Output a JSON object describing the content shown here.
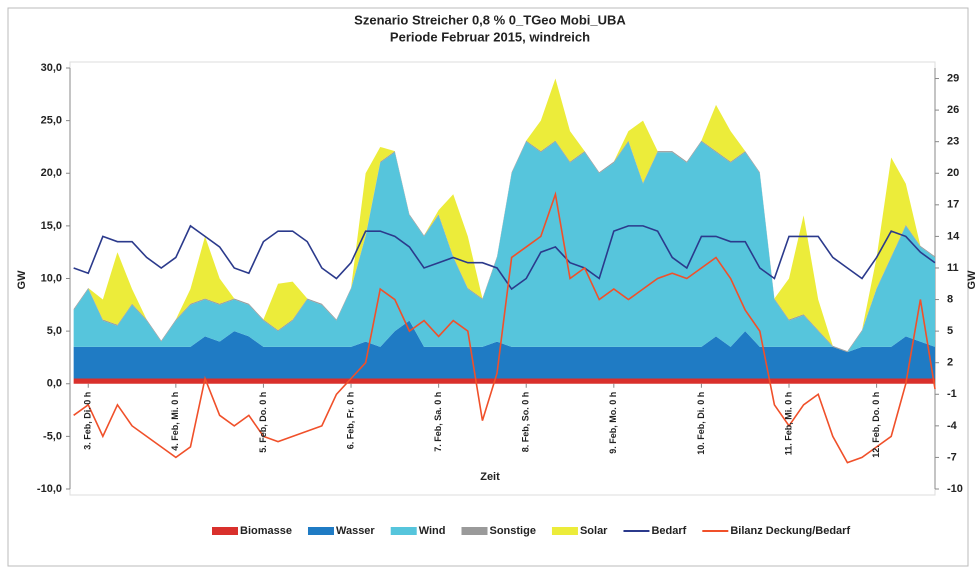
{
  "chart_data": {
    "type": "stacked-area-line",
    "title": "Szenario Streicher 0,8 % 0_TGeo Mobi_UBA",
    "subtitle": "Periode Februar 2015, windreich",
    "x_label": "Zeit",
    "y_label": "GW",
    "y2_label": "GW",
    "x": [
      -4,
      0,
      4,
      8,
      12,
      16,
      20,
      24,
      28,
      32,
      36,
      40,
      44,
      48,
      52,
      56,
      60,
      64,
      68,
      72,
      76,
      80,
      84,
      88,
      92,
      96,
      100,
      104,
      108,
      112,
      116,
      120,
      124,
      128,
      132,
      136,
      140,
      144,
      148,
      152,
      156,
      160,
      164,
      168,
      172,
      176,
      180,
      184,
      188,
      192,
      196,
      200,
      204,
      208,
      212,
      216,
      220,
      224,
      228,
      232
    ],
    "xlim": [
      -5,
      232
    ],
    "xticks": [
      {
        "value": 0,
        "label": "3. Feb, Di. 0 h"
      },
      {
        "value": 24,
        "label": "4. Feb, Mi. 0 h"
      },
      {
        "value": 48,
        "label": "5. Feb, Do. 0 h"
      },
      {
        "value": 72,
        "label": "6. Feb, Fr. 0 h"
      },
      {
        "value": 96,
        "label": "7. Feb, Sa. 0 h"
      },
      {
        "value": 120,
        "label": "8. Feb, So. 0 h"
      },
      {
        "value": 144,
        "label": "9. Feb, Mo. 0 h"
      },
      {
        "value": 168,
        "label": "10. Feb, Di. 0 h"
      },
      {
        "value": 192,
        "label": "11. Feb, Mi. 0 h"
      },
      {
        "value": 216,
        "label": "12. Feb, Do. 0 h"
      }
    ],
    "ylim": [
      -10,
      30
    ],
    "yticks": [
      {
        "value": -10,
        "label": "-10,0"
      },
      {
        "value": -5,
        "label": "-5,0"
      },
      {
        "value": 0,
        "label": "0,0"
      },
      {
        "value": 5,
        "label": "5,0"
      },
      {
        "value": 10,
        "label": "10,0"
      },
      {
        "value": 15,
        "label": "15,0"
      },
      {
        "value": 20,
        "label": "20,0"
      },
      {
        "value": 25,
        "label": "25,0"
      },
      {
        "value": 30,
        "label": "30,0"
      }
    ],
    "y2lim": [
      -10,
      30
    ],
    "y2ticks": [
      -10,
      -7,
      -4,
      -1,
      2,
      5,
      8,
      11,
      14,
      17,
      20,
      23,
      26,
      29
    ],
    "series": [
      {
        "name": "Biomasse",
        "kind": "area",
        "color": "#d9302c",
        "values": [
          0.5,
          0.5,
          0.5,
          0.5,
          0.5,
          0.5,
          0.5,
          0.5,
          0.5,
          0.5,
          0.5,
          0.5,
          0.5,
          0.5,
          0.5,
          0.5,
          0.5,
          0.5,
          0.5,
          0.5,
          0.5,
          0.5,
          0.5,
          0.5,
          0.5,
          0.5,
          0.5,
          0.5,
          0.5,
          0.5,
          0.5,
          0.5,
          0.5,
          0.5,
          0.5,
          0.5,
          0.5,
          0.5,
          0.5,
          0.5,
          0.5,
          0.5,
          0.5,
          0.5,
          0.5,
          0.5,
          0.5,
          0.5,
          0.5,
          0.5,
          0.5,
          0.5,
          0.5,
          0.5,
          0.5,
          0.5,
          0.5,
          0.5,
          0.5,
          0.5
        ]
      },
      {
        "name": "Wasser",
        "kind": "area",
        "color": "#1f7bc4",
        "values": [
          3,
          3,
          3,
          3,
          3,
          3,
          3,
          3,
          3,
          4,
          3.5,
          4.5,
          4,
          3,
          3,
          3,
          3,
          3,
          3,
          3,
          3.5,
          3,
          4.5,
          5.5,
          3,
          3,
          3,
          3,
          3,
          3.5,
          3,
          3,
          3,
          3,
          3,
          3,
          3,
          3,
          3,
          3,
          3,
          3,
          3,
          3,
          4,
          3,
          4.5,
          3,
          3,
          3,
          3,
          3,
          3,
          2.5,
          3,
          3,
          3,
          4,
          3.5,
          3
        ]
      },
      {
        "name": "Wind",
        "kind": "area",
        "color": "#56c5dc",
        "values": [
          3.5,
          5.5,
          2.5,
          2,
          4,
          2.5,
          0.5,
          2.5,
          4,
          3.5,
          3.5,
          3,
          3,
          2.5,
          1.5,
          2.5,
          4.5,
          4,
          2.5,
          5.5,
          10,
          17.5,
          17,
          10,
          10.5,
          12.5,
          8.5,
          5.5,
          4.5,
          8,
          16.5,
          19.5,
          18.5,
          19.5,
          17.5,
          18.5,
          16.5,
          17.5,
          19.5,
          15.5,
          18.5,
          18.5,
          17.5,
          19.5,
          17.5,
          17.5,
          17,
          16.5,
          4.5,
          2.5,
          3,
          1.5,
          0,
          0,
          1.5,
          5.5,
          8.5,
          10.5,
          9,
          8.5
        ]
      },
      {
        "name": "Sonstige",
        "kind": "area",
        "color": "#9a9a9a",
        "values": [
          0.1,
          0.1,
          0.1,
          0.1,
          0.1,
          0.1,
          0.1,
          0.1,
          0.1,
          0.1,
          0.1,
          0.1,
          0.1,
          0.1,
          0.1,
          0.1,
          0.1,
          0.1,
          0.1,
          0.1,
          0.1,
          0.1,
          0.1,
          0.1,
          0.1,
          0.1,
          0.1,
          0.1,
          0.1,
          0.1,
          0.1,
          0.1,
          0.1,
          0.1,
          0.1,
          0.1,
          0.1,
          0.1,
          0.1,
          0.1,
          0.1,
          0.1,
          0.1,
          0.1,
          0.1,
          0.1,
          0.1,
          0.1,
          0.1,
          0.1,
          0.1,
          0.1,
          0.1,
          0.1,
          0.1,
          0.1,
          0.1,
          0.1,
          0.1,
          0.1
        ]
      },
      {
        "name": "Solar",
        "kind": "area",
        "color": "#ecec3a",
        "values": [
          0,
          0,
          1.9,
          6.9,
          1.4,
          0,
          0,
          0,
          1.4,
          5.9,
          2.4,
          0,
          0,
          0,
          4.4,
          3.6,
          0,
          0,
          0,
          0,
          5.9,
          1.4,
          0,
          0,
          0,
          0.4,
          5.9,
          4.9,
          0,
          0,
          0,
          0,
          2.9,
          5.9,
          2.9,
          0,
          0,
          0,
          0.9,
          5.9,
          0,
          0,
          0,
          0,
          4.4,
          2.9,
          0,
          0,
          0,
          3.9,
          9.4,
          2.9,
          0,
          0,
          0,
          2.9,
          9.4,
          3.9,
          0,
          0
        ]
      },
      {
        "name": "Bedarf",
        "kind": "line",
        "color": "#2b3a8c",
        "values": [
          11,
          10.5,
          14,
          13.5,
          13.5,
          12,
          11,
          12,
          15,
          14,
          13,
          11,
          10.5,
          13.5,
          14.5,
          14.5,
          13.5,
          11,
          10,
          11.5,
          14.5,
          14.5,
          14,
          13,
          11,
          11.5,
          12,
          11.5,
          11.5,
          11,
          9,
          10,
          12.5,
          13,
          11.5,
          11,
          10,
          14.5,
          15,
          15,
          14.5,
          12,
          11,
          14,
          14,
          13.5,
          13.5,
          11,
          10,
          14,
          14,
          14,
          12,
          11,
          10,
          12,
          14.5,
          14,
          12.5,
          11.5
        ]
      },
      {
        "name": "Bilanz Deckung/Bedarf",
        "kind": "line",
        "axis": "y2",
        "color": "#f0502a",
        "values": [
          -3,
          -2,
          -5,
          -2,
          -4,
          -5,
          -6,
          -7,
          -6,
          0.5,
          -3,
          -4,
          -3,
          -5,
          -5.5,
          -5,
          -4.5,
          -4,
          -1,
          0.5,
          2,
          9,
          8,
          5,
          6,
          4.5,
          6,
          5,
          -3.5,
          1,
          12,
          13,
          14,
          18,
          10,
          11,
          8,
          9,
          8,
          9,
          10,
          10.5,
          10,
          11,
          12,
          10,
          7,
          5,
          -2,
          -4,
          -2,
          -1,
          -5,
          -7.5,
          -7,
          -6,
          -5,
          0,
          8,
          -0.5
        ]
      }
    ]
  }
}
